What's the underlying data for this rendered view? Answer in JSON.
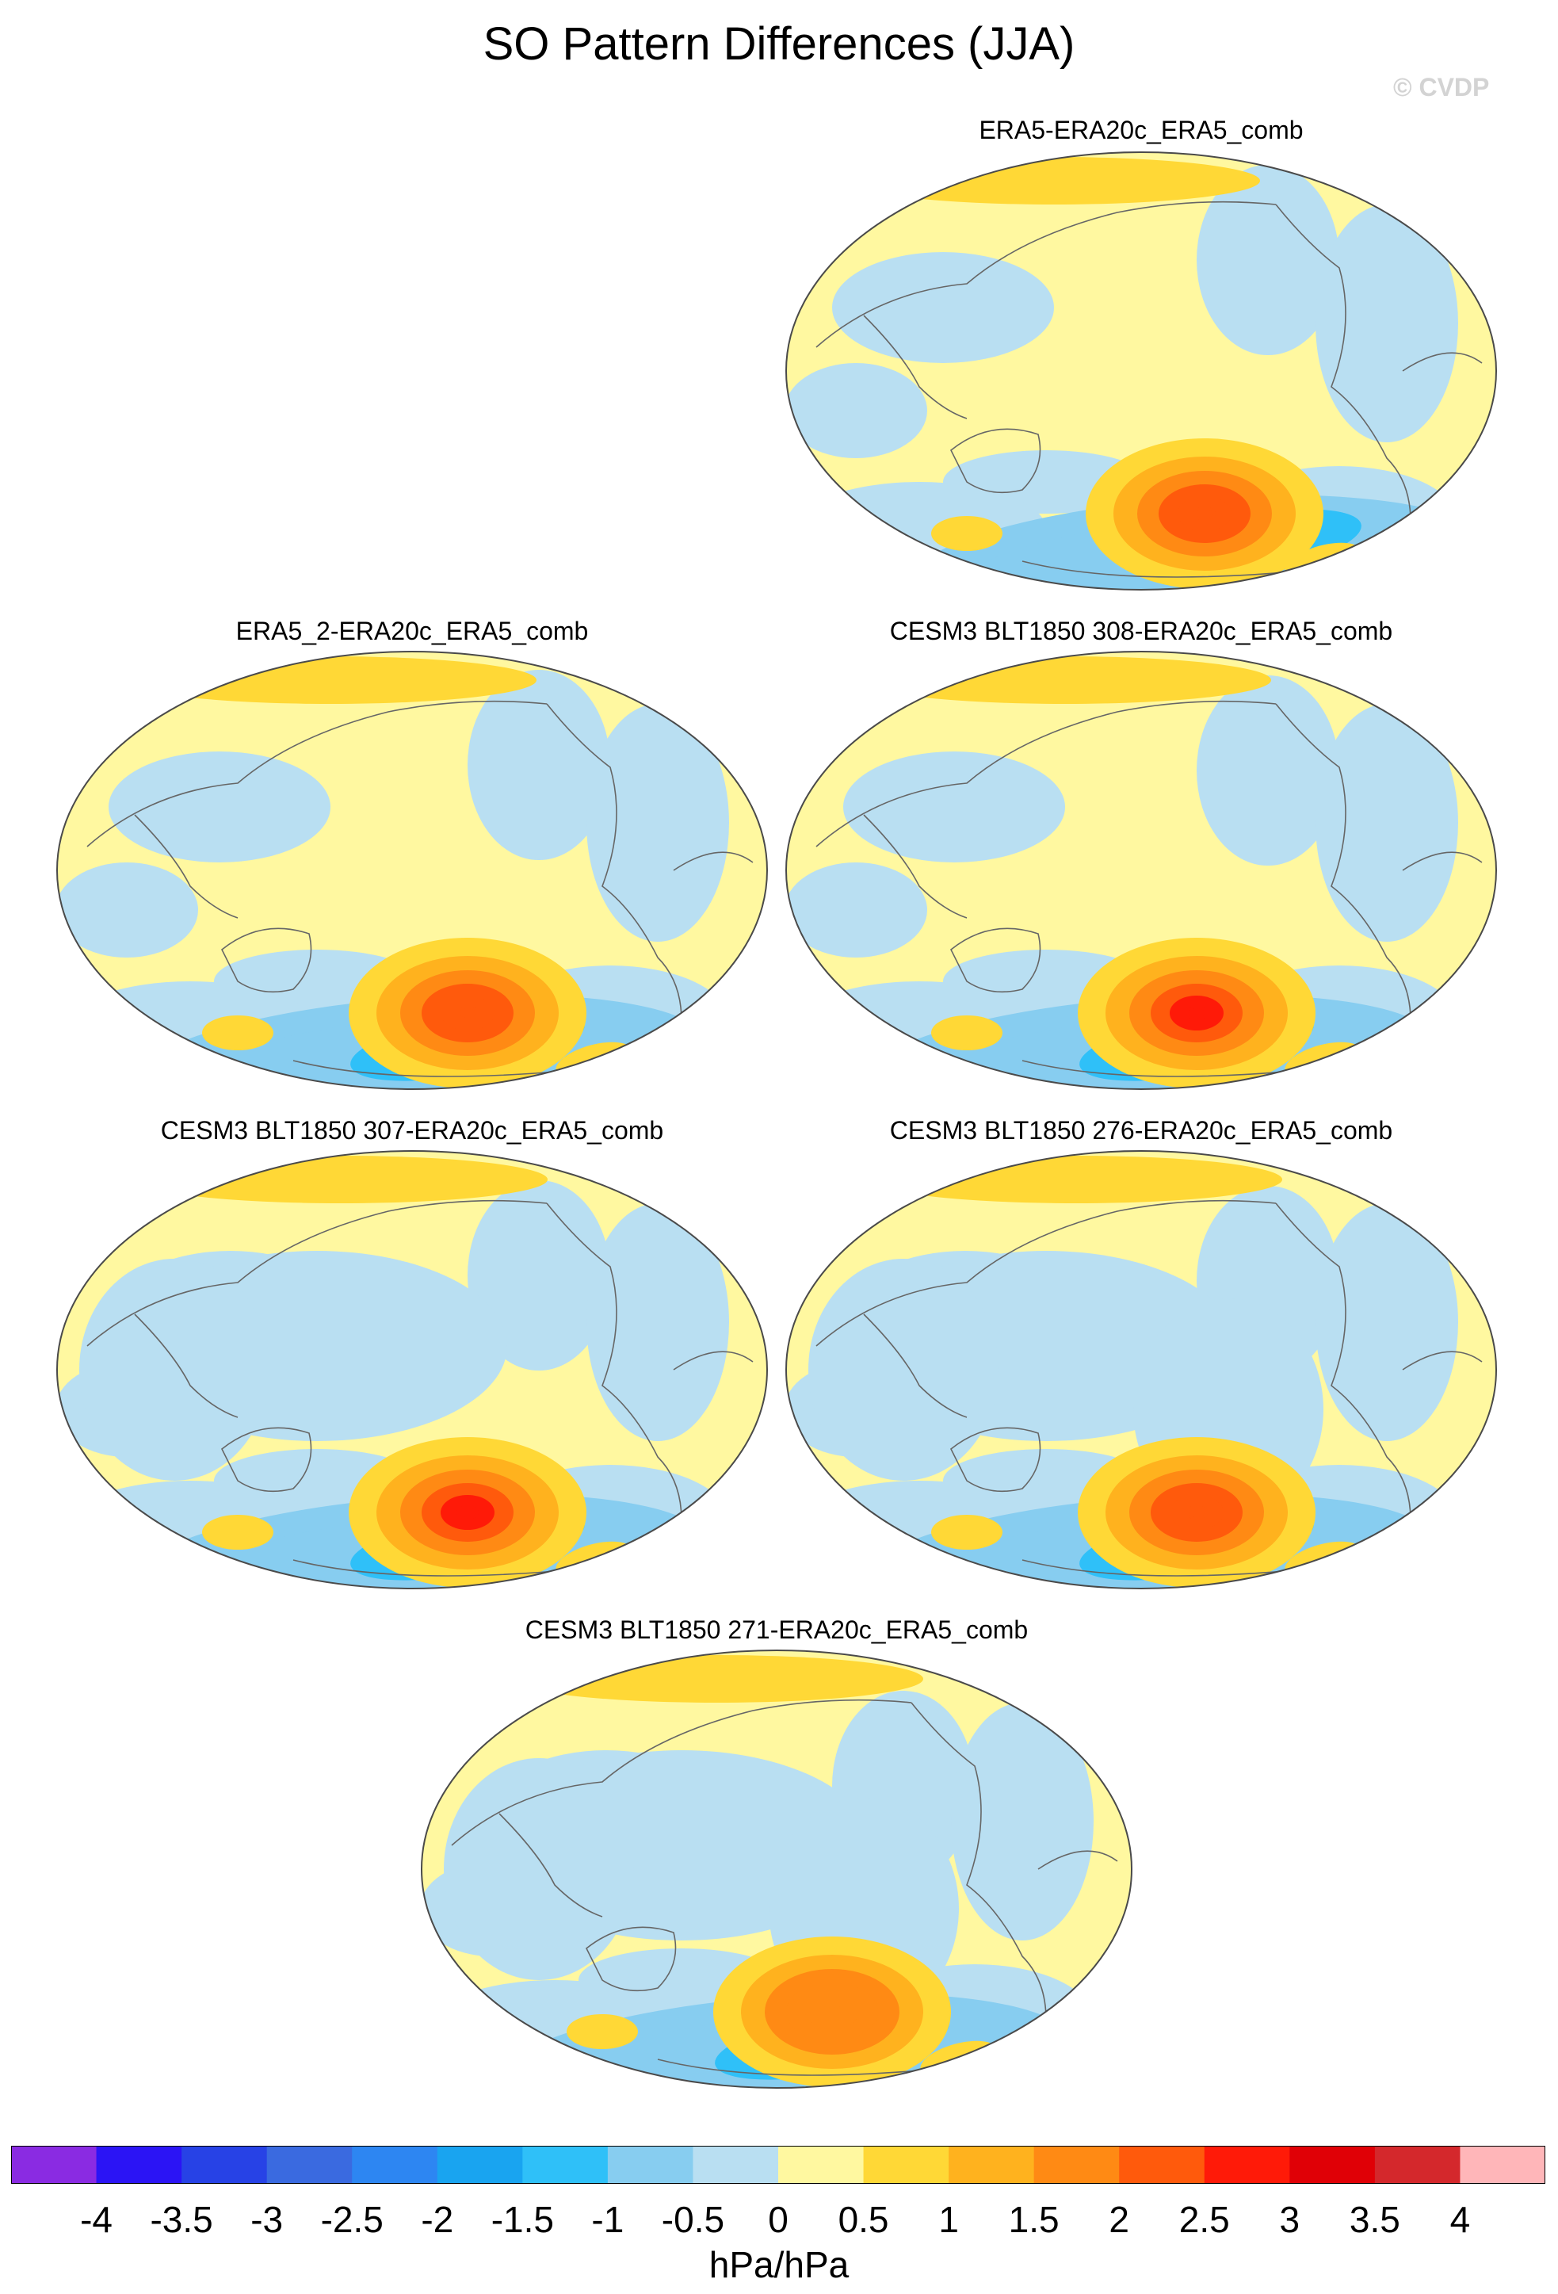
{
  "title": "SO Pattern Differences (JJA)",
  "watermark": "© CVDP",
  "units": "hPa/hPa",
  "colors": {
    "ocean_base_light_blue": "#b9dff2",
    "neutral_yellow": "#fff8a0",
    "coast": "#666666"
  },
  "colorbar": {
    "labels": [
      "-4",
      "-3.5",
      "-3",
      "-2.5",
      "-2",
      "-1.5",
      "-1",
      "-0.5",
      "0",
      "0.5",
      "1",
      "1.5",
      "2",
      "2.5",
      "3",
      "3.5",
      "4"
    ],
    "colors": [
      "#8a2be2",
      "#2b14f5",
      "#2742e6",
      "#3a6ae0",
      "#2d86f2",
      "#19a4f0",
      "#2fc0f8",
      "#87cdf0",
      "#b9dff2",
      "#fff8a0",
      "#ffd836",
      "#ffb21e",
      "#ff8a14",
      "#ff5a0c",
      "#ff1a08",
      "#e00006",
      "#d4282c",
      "#ffb6b9"
    ]
  },
  "panels": [
    {
      "title": "ERA5-ERA20c_ERA5_comb",
      "anomaly": {
        "peak": 2.0,
        "trough": -1.7
      }
    },
    {
      "title": "ERA5_2-ERA20c_ERA5_comb",
      "anomaly": {
        "peak": 2.2,
        "trough": -1.7
      }
    },
    {
      "title": "CESM3 BLT1850 308-ERA20c_ERA5_comb",
      "anomaly": {
        "peak": 2.6,
        "trough": -1.7
      }
    },
    {
      "title": "CESM3 BLT1850 307-ERA20c_ERA5_comb",
      "anomaly": {
        "peak": 2.8,
        "trough": -1.8
      }
    },
    {
      "title": "CESM3 BLT1850 276-ERA20c_ERA5_comb",
      "anomaly": {
        "peak": 2.1,
        "trough": -1.6
      }
    },
    {
      "title": "CESM3 BLT1850 271-ERA20c_ERA5_comb",
      "anomaly": {
        "peak": 1.8,
        "trough": -1.5
      }
    }
  ]
}
